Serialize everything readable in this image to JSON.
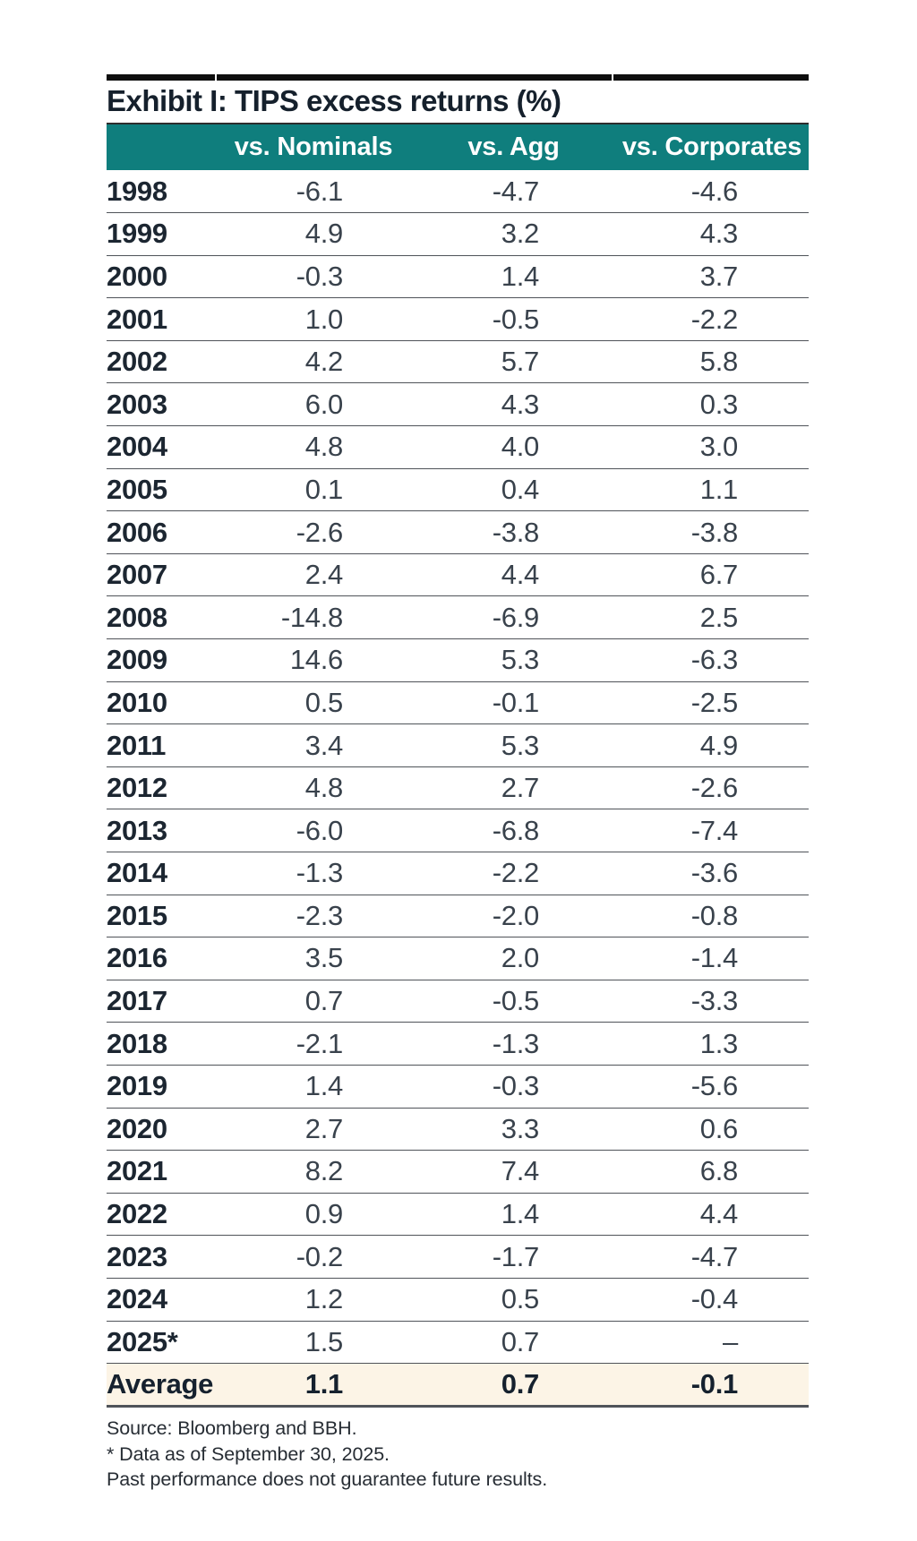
{
  "title": "Exhibit I: TIPS excess returns (%)",
  "table": {
    "columns": [
      "vs. Nominals",
      "vs. Agg",
      "vs. Corporates"
    ],
    "rows": [
      {
        "year": "1998",
        "values": [
          "-6.1",
          "-4.7",
          "-4.6"
        ]
      },
      {
        "year": "1999",
        "values": [
          "4.9",
          "3.2",
          "4.3"
        ]
      },
      {
        "year": "2000",
        "values": [
          "-0.3",
          "1.4",
          "3.7"
        ]
      },
      {
        "year": "2001",
        "values": [
          "1.0",
          "-0.5",
          "-2.2"
        ]
      },
      {
        "year": "2002",
        "values": [
          "4.2",
          "5.7",
          "5.8"
        ]
      },
      {
        "year": "2003",
        "values": [
          "6.0",
          "4.3",
          "0.3"
        ]
      },
      {
        "year": "2004",
        "values": [
          "4.8",
          "4.0",
          "3.0"
        ]
      },
      {
        "year": "2005",
        "values": [
          "0.1",
          "0.4",
          "1.1"
        ]
      },
      {
        "year": "2006",
        "values": [
          "-2.6",
          "-3.8",
          "-3.8"
        ]
      },
      {
        "year": "2007",
        "values": [
          "2.4",
          "4.4",
          "6.7"
        ]
      },
      {
        "year": "2008",
        "values": [
          "-14.8",
          "-6.9",
          "2.5"
        ]
      },
      {
        "year": "2009",
        "values": [
          "14.6",
          "5.3",
          "-6.3"
        ]
      },
      {
        "year": "2010",
        "values": [
          "0.5",
          "-0.1",
          "-2.5"
        ]
      },
      {
        "year": "2011",
        "values": [
          "3.4",
          "5.3",
          "4.9"
        ]
      },
      {
        "year": "2012",
        "values": [
          "4.8",
          "2.7",
          "-2.6"
        ]
      },
      {
        "year": "2013",
        "values": [
          "-6.0",
          "-6.8",
          "-7.4"
        ]
      },
      {
        "year": "2014",
        "values": [
          "-1.3",
          "-2.2",
          "-3.6"
        ]
      },
      {
        "year": "2015",
        "values": [
          "-2.3",
          "-2.0",
          "-0.8"
        ]
      },
      {
        "year": "2016",
        "values": [
          "3.5",
          "2.0",
          "-1.4"
        ]
      },
      {
        "year": "2017",
        "values": [
          "0.7",
          "-0.5",
          "-3.3"
        ]
      },
      {
        "year": "2018",
        "values": [
          "-2.1",
          "-1.3",
          "1.3"
        ]
      },
      {
        "year": "2019",
        "values": [
          "1.4",
          "-0.3",
          "-5.6"
        ]
      },
      {
        "year": "2020",
        "values": [
          "2.7",
          "3.3",
          "0.6"
        ]
      },
      {
        "year": "2021",
        "values": [
          "8.2",
          "7.4",
          "6.8"
        ]
      },
      {
        "year": "2022",
        "values": [
          "0.9",
          "1.4",
          "4.4"
        ]
      },
      {
        "year": "2023",
        "values": [
          "-0.2",
          "-1.7",
          "-4.7"
        ]
      },
      {
        "year": "2024",
        "values": [
          "1.2",
          "0.5",
          "-0.4"
        ]
      },
      {
        "year": "2025*",
        "values": [
          "1.5",
          "0.7",
          "–"
        ]
      }
    ],
    "average": {
      "label": "Average",
      "values": [
        "1.1",
        "0.7",
        "-0.1"
      ]
    }
  },
  "footnotes": [
    "Source: Bloomberg and BBH.",
    "* Data as of September 30, 2025.",
    "Past performance does not guarantee future results."
  ],
  "colors": {
    "teal": "#0f7e7d",
    "average_bg": "#fcf4e6",
    "separator": "#4f5359",
    "top_rule": "#0e0e0e"
  },
  "chart_data": {
    "type": "table",
    "title": "Exhibit I: TIPS excess returns (%)",
    "categories": [
      "1998",
      "1999",
      "2000",
      "2001",
      "2002",
      "2003",
      "2004",
      "2005",
      "2006",
      "2007",
      "2008",
      "2009",
      "2010",
      "2011",
      "2012",
      "2013",
      "2014",
      "2015",
      "2016",
      "2017",
      "2018",
      "2019",
      "2020",
      "2021",
      "2022",
      "2023",
      "2024",
      "2025*",
      "Average"
    ],
    "series": [
      {
        "name": "vs. Nominals",
        "values": [
          -6.1,
          4.9,
          -0.3,
          1.0,
          4.2,
          6.0,
          4.8,
          0.1,
          -2.6,
          2.4,
          -14.8,
          14.6,
          0.5,
          3.4,
          4.8,
          -6.0,
          -1.3,
          -2.3,
          3.5,
          0.7,
          -2.1,
          1.4,
          2.7,
          8.2,
          0.9,
          -0.2,
          1.2,
          1.5,
          1.1
        ]
      },
      {
        "name": "vs. Agg",
        "values": [
          -4.7,
          3.2,
          1.4,
          -0.5,
          5.7,
          4.3,
          4.0,
          0.4,
          -3.8,
          4.4,
          -6.9,
          5.3,
          -0.1,
          5.3,
          2.7,
          -6.8,
          -2.2,
          -2.0,
          2.0,
          -0.5,
          -1.3,
          -0.3,
          3.3,
          7.4,
          1.4,
          -1.7,
          0.5,
          0.7,
          0.7
        ]
      },
      {
        "name": "vs. Corporates",
        "values": [
          -4.6,
          4.3,
          3.7,
          -2.2,
          5.8,
          0.3,
          3.0,
          1.1,
          -3.8,
          6.7,
          2.5,
          -6.3,
          -2.5,
          4.9,
          -2.6,
          -7.4,
          -3.6,
          -0.8,
          -1.4,
          -3.3,
          1.3,
          -5.6,
          0.6,
          6.8,
          4.4,
          -4.7,
          -0.4,
          null,
          -0.1
        ]
      }
    ],
    "missing_value_display": "–",
    "notes": [
      "Source: Bloomberg and BBH.",
      "* Data as of September 30, 2025.",
      "Past performance does not guarantee future results."
    ]
  }
}
